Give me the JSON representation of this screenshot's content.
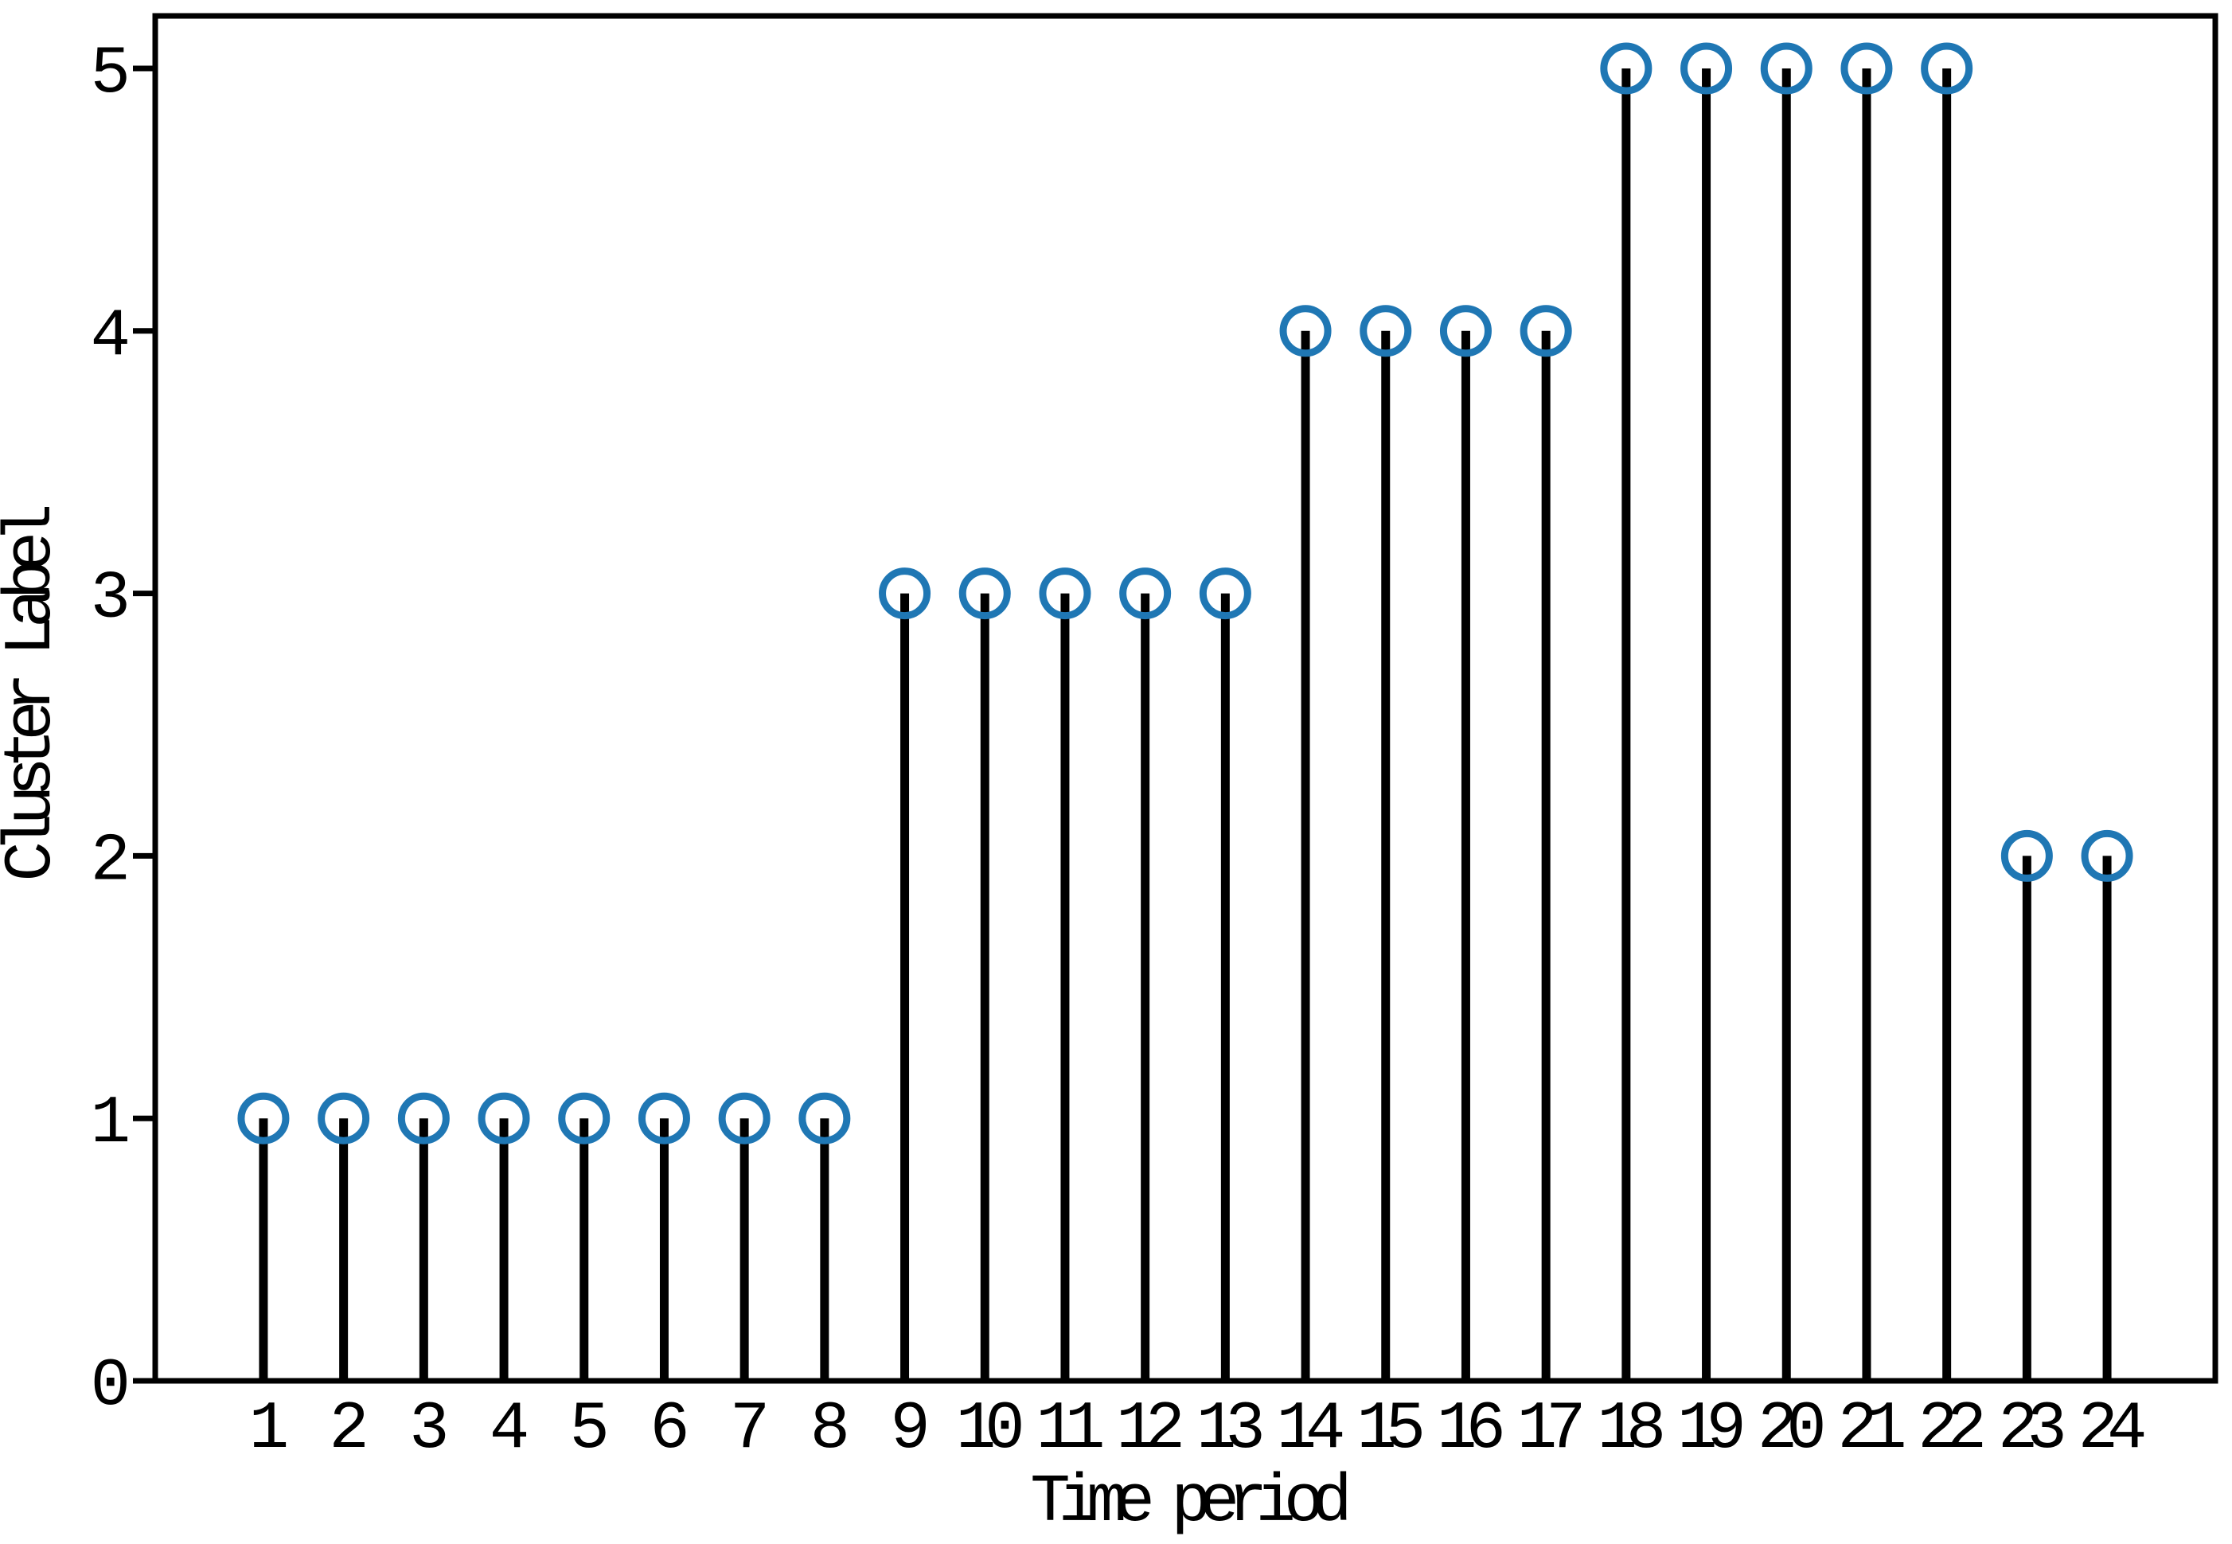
{
  "figure": {
    "background_color": "#ffffff"
  },
  "chart_data": {
    "type": "stem",
    "title": "",
    "xlabel": "Time period",
    "ylabel": "Cluster Label",
    "x": [
      1,
      2,
      3,
      4,
      5,
      6,
      7,
      8,
      9,
      10,
      11,
      12,
      13,
      14,
      15,
      16,
      17,
      18,
      19,
      20,
      21,
      22,
      23,
      24
    ],
    "values": [
      1,
      1,
      1,
      1,
      1,
      1,
      1,
      1,
      3,
      3,
      3,
      3,
      3,
      4,
      4,
      4,
      4,
      5,
      5,
      5,
      5,
      5,
      2,
      2
    ],
    "xtick_labels": [
      "1",
      "2",
      "3",
      "4",
      "5",
      "6",
      "7",
      "8",
      "9",
      "10",
      "11",
      "12",
      "13",
      "14",
      "15",
      "16",
      "17",
      "18",
      "19",
      "20",
      "21",
      "22",
      "23",
      "24"
    ],
    "ytick_values": [
      0,
      1,
      2,
      3,
      4,
      5
    ],
    "ytick_labels": [
      "0",
      "1",
      "2",
      "3",
      "4",
      "5"
    ],
    "xlim": [
      -0.35,
      25.35
    ],
    "ylim": [
      0,
      5.2
    ],
    "grid": false,
    "legend": "none",
    "stem_color": "#000000",
    "marker_color": "#1f77b4",
    "marker_fill": "none",
    "spine_color": "#000000"
  }
}
